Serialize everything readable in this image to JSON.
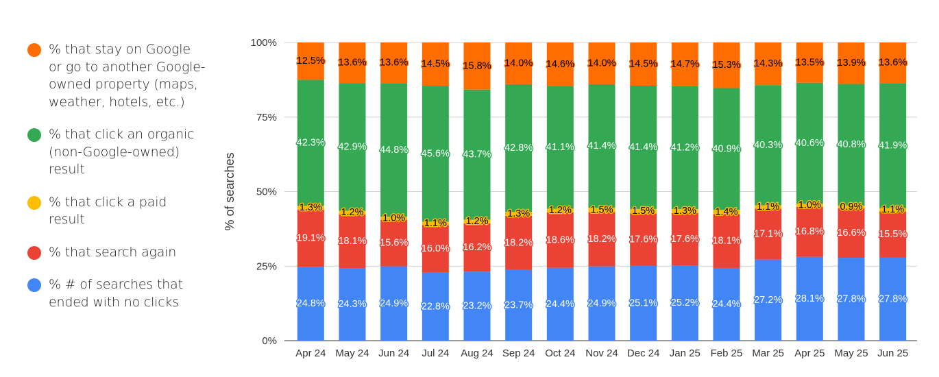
{
  "chart_data": {
    "type": "bar",
    "stacked": "percent",
    "ylabel": "% of searches",
    "xlabel": "",
    "ylim": [
      0,
      100
    ],
    "yticks": [
      "0%",
      "25%",
      "50%",
      "75%",
      "100%"
    ],
    "grid": true,
    "legend_position": "left",
    "categories": [
      "Apr 24",
      "May 24",
      "Jun 24",
      "Jul 24",
      "Aug 24",
      "Sep 24",
      "Oct 24",
      "Nov 24",
      "Dec 24",
      "Jan 25",
      "Feb 25",
      "Mar 25",
      "Apr 25",
      "May 25",
      "Jun 25"
    ],
    "series": [
      {
        "name": "% # of searches that ended with no clicks",
        "color": "#4285f4",
        "label_color": "#ffffff",
        "values": [
          24.8,
          24.3,
          24.9,
          22.8,
          23.2,
          23.7,
          24.4,
          24.9,
          25.1,
          25.2,
          24.4,
          27.2,
          28.1,
          27.8,
          27.8
        ]
      },
      {
        "name": "% that search again",
        "color": "#ea4335",
        "label_color": "#ffffff",
        "values": [
          19.1,
          18.1,
          15.6,
          16.0,
          16.2,
          18.2,
          18.6,
          18.2,
          17.6,
          17.6,
          18.1,
          17.1,
          16.8,
          16.6,
          15.5
        ]
      },
      {
        "name": "% that click a paid result",
        "color": "#fbbc04",
        "label_color": "#000000",
        "values": [
          1.3,
          1.2,
          1.0,
          1.1,
          1.2,
          1.3,
          1.2,
          1.5,
          1.5,
          1.3,
          1.4,
          1.1,
          1.0,
          0.9,
          1.1
        ]
      },
      {
        "name": "% that click an organic (non-Google-owned) result",
        "color": "#34a853",
        "label_color": "#ffffff",
        "values": [
          42.3,
          42.9,
          44.8,
          45.6,
          43.7,
          42.8,
          41.1,
          41.4,
          41.4,
          41.2,
          40.9,
          40.3,
          40.6,
          40.8,
          41.9
        ]
      },
      {
        "name": "% that stay on Google or go to another Google-owned property (maps, weather, hotels, etc.)",
        "color": "#ff6d01",
        "label_color": "#000000",
        "values": [
          12.5,
          13.6,
          13.6,
          14.5,
          15.8,
          14.0,
          14.6,
          14.0,
          14.5,
          14.7,
          15.3,
          14.3,
          13.5,
          13.9,
          13.6
        ]
      }
    ]
  }
}
